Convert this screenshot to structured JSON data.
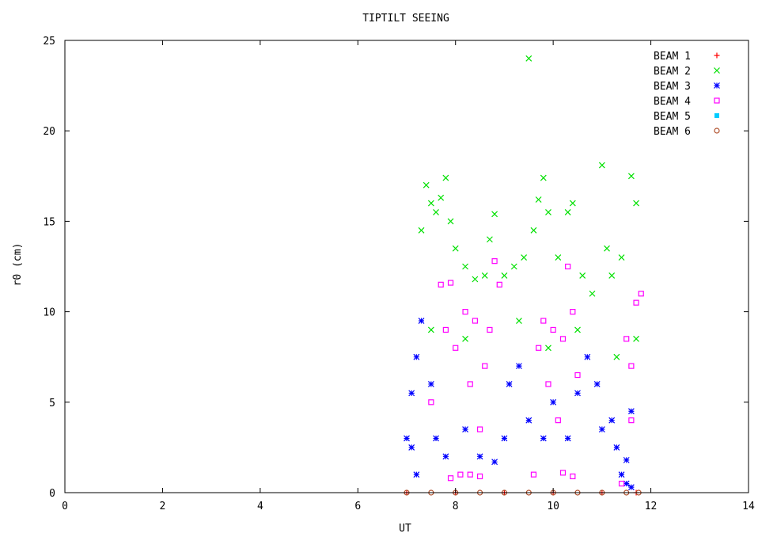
{
  "chart_data": {
    "type": "scatter",
    "title": "TIPTILT SEEING",
    "xlabel": "UT",
    "ylabel": "r0 (cm)",
    "xlim": [
      0,
      14
    ],
    "ylim": [
      0,
      25
    ],
    "xticks": [
      0,
      2,
      4,
      6,
      8,
      10,
      12,
      14
    ],
    "yticks": [
      0,
      5,
      10,
      15,
      20,
      25
    ],
    "grid": false,
    "legend_position": "top-right",
    "series": [
      {
        "name": "BEAM 1",
        "marker": "plus",
        "color": "#ff0000",
        "points": [
          [
            7.0,
            0.0
          ],
          [
            8.0,
            0.0
          ],
          [
            9.0,
            0.0
          ],
          [
            10.0,
            0.0
          ],
          [
            11.0,
            0.0
          ],
          [
            11.7,
            0.0
          ]
        ]
      },
      {
        "name": "BEAM 2",
        "marker": "cross",
        "color": "#00e000",
        "points": [
          [
            7.3,
            14.5
          ],
          [
            7.4,
            17.0
          ],
          [
            7.5,
            16.0
          ],
          [
            7.6,
            15.5
          ],
          [
            7.7,
            16.3
          ],
          [
            7.8,
            17.4
          ],
          [
            7.9,
            15.0
          ],
          [
            8.0,
            13.5
          ],
          [
            8.2,
            12.5
          ],
          [
            8.4,
            11.8
          ],
          [
            8.6,
            12.0
          ],
          [
            8.7,
            14.0
          ],
          [
            8.8,
            15.4
          ],
          [
            9.0,
            12.0
          ],
          [
            9.2,
            12.5
          ],
          [
            9.4,
            13.0
          ],
          [
            9.5,
            24.0
          ],
          [
            9.6,
            14.5
          ],
          [
            9.7,
            16.2
          ],
          [
            9.8,
            17.4
          ],
          [
            9.9,
            15.5
          ],
          [
            10.1,
            13.0
          ],
          [
            10.3,
            15.5
          ],
          [
            10.4,
            16.0
          ],
          [
            10.6,
            12.0
          ],
          [
            10.8,
            11.0
          ],
          [
            11.0,
            18.1
          ],
          [
            11.1,
            13.5
          ],
          [
            11.2,
            12.0
          ],
          [
            11.4,
            13.0
          ],
          [
            11.6,
            17.5
          ],
          [
            11.7,
            16.0
          ],
          [
            7.5,
            9.0
          ],
          [
            8.2,
            8.5
          ],
          [
            9.3,
            9.5
          ],
          [
            9.9,
            8.0
          ],
          [
            10.5,
            9.0
          ],
          [
            11.3,
            7.5
          ],
          [
            11.7,
            8.5
          ]
        ]
      },
      {
        "name": "BEAM 3",
        "marker": "star",
        "color": "#0000ff",
        "points": [
          [
            7.0,
            3.0
          ],
          [
            7.1,
            2.5
          ],
          [
            7.2,
            1.0
          ],
          [
            7.1,
            5.5
          ],
          [
            7.2,
            7.5
          ],
          [
            7.3,
            9.5
          ],
          [
            7.5,
            6.0
          ],
          [
            7.6,
            3.0
          ],
          [
            7.8,
            2.0
          ],
          [
            8.2,
            3.5
          ],
          [
            8.5,
            2.0
          ],
          [
            8.8,
            1.7
          ],
          [
            9.0,
            3.0
          ],
          [
            9.1,
            6.0
          ],
          [
            9.3,
            7.0
          ],
          [
            9.5,
            4.0
          ],
          [
            9.8,
            3.0
          ],
          [
            10.0,
            5.0
          ],
          [
            10.3,
            3.0
          ],
          [
            10.5,
            5.5
          ],
          [
            10.7,
            7.5
          ],
          [
            10.9,
            6.0
          ],
          [
            11.0,
            3.5
          ],
          [
            11.2,
            4.0
          ],
          [
            11.3,
            2.5
          ],
          [
            11.4,
            1.0
          ],
          [
            11.5,
            0.5
          ],
          [
            11.6,
            0.3
          ],
          [
            11.5,
            1.8
          ],
          [
            11.6,
            4.5
          ]
        ]
      },
      {
        "name": "BEAM 4",
        "marker": "square",
        "color": "#ff00ff",
        "points": [
          [
            7.5,
            5.0
          ],
          [
            7.7,
            11.5
          ],
          [
            7.8,
            9.0
          ],
          [
            7.9,
            11.6
          ],
          [
            8.0,
            8.0
          ],
          [
            8.1,
            1.0
          ],
          [
            8.2,
            10.0
          ],
          [
            8.3,
            6.0
          ],
          [
            8.4,
            9.5
          ],
          [
            8.5,
            3.5
          ],
          [
            8.6,
            7.0
          ],
          [
            8.7,
            9.0
          ],
          [
            8.8,
            12.8
          ],
          [
            8.9,
            11.5
          ],
          [
            7.9,
            0.8
          ],
          [
            8.3,
            1.0
          ],
          [
            8.5,
            0.9
          ],
          [
            9.6,
            1.0
          ],
          [
            9.7,
            8.0
          ],
          [
            9.8,
            9.5
          ],
          [
            9.9,
            6.0
          ],
          [
            10.0,
            9.0
          ],
          [
            10.1,
            4.0
          ],
          [
            10.2,
            8.5
          ],
          [
            10.3,
            12.5
          ],
          [
            10.4,
            10.0
          ],
          [
            10.5,
            6.5
          ],
          [
            10.2,
            1.1
          ],
          [
            10.4,
            0.9
          ],
          [
            11.4,
            0.5
          ],
          [
            11.5,
            8.5
          ],
          [
            11.6,
            7.0
          ],
          [
            11.7,
            10.5
          ],
          [
            11.8,
            11.0
          ],
          [
            11.6,
            4.0
          ]
        ]
      },
      {
        "name": "BEAM 5",
        "marker": "filled-square",
        "color": "#00ccff",
        "points": []
      },
      {
        "name": "BEAM 6",
        "marker": "circle",
        "color": "#b0502c",
        "points": [
          [
            7.0,
            0.0
          ],
          [
            7.5,
            0.0
          ],
          [
            8.0,
            0.0
          ],
          [
            8.5,
            0.0
          ],
          [
            9.0,
            0.0
          ],
          [
            9.5,
            0.0
          ],
          [
            10.0,
            0.0
          ],
          [
            10.5,
            0.0
          ],
          [
            11.0,
            0.0
          ],
          [
            11.5,
            0.0
          ],
          [
            11.75,
            0.0
          ]
        ]
      }
    ]
  }
}
